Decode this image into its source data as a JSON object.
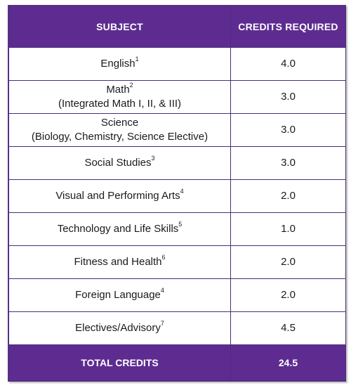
{
  "header": {
    "subject": "SUBJECT",
    "credits": "CREDITS REQUIRED"
  },
  "rows": [
    {
      "subject": "English",
      "note": "1",
      "subline": "",
      "credits": "4.0"
    },
    {
      "subject": "Math",
      "note": "2",
      "subline": "(Integrated Math I, II, & III)",
      "credits": "3.0"
    },
    {
      "subject": "Science",
      "note": "",
      "subline": "(Biology, Chemistry, Science Elective)",
      "credits": "3.0"
    },
    {
      "subject": "Social Studies",
      "note": "3",
      "subline": "",
      "credits": "3.0"
    },
    {
      "subject": "Visual and Performing Arts",
      "note": "4",
      "subline": "",
      "credits": "2.0"
    },
    {
      "subject": "Technology and Life Skills",
      "note": "5",
      "subline": "",
      "credits": "1.0"
    },
    {
      "subject": "Fitness and Health",
      "note": "6",
      "subline": "",
      "credits": "2.0"
    },
    {
      "subject": "Foreign Language",
      "note": "4",
      "subline": "",
      "credits": "2.0"
    },
    {
      "subject": "Electives/Advisory",
      "note": "7",
      "subline": "",
      "credits": "4.5"
    }
  ],
  "footer": {
    "label": "TOTAL CREDITS",
    "total": "24.5"
  },
  "colors": {
    "header_bg": "#5e2c91",
    "border": "#4a2d7a"
  }
}
